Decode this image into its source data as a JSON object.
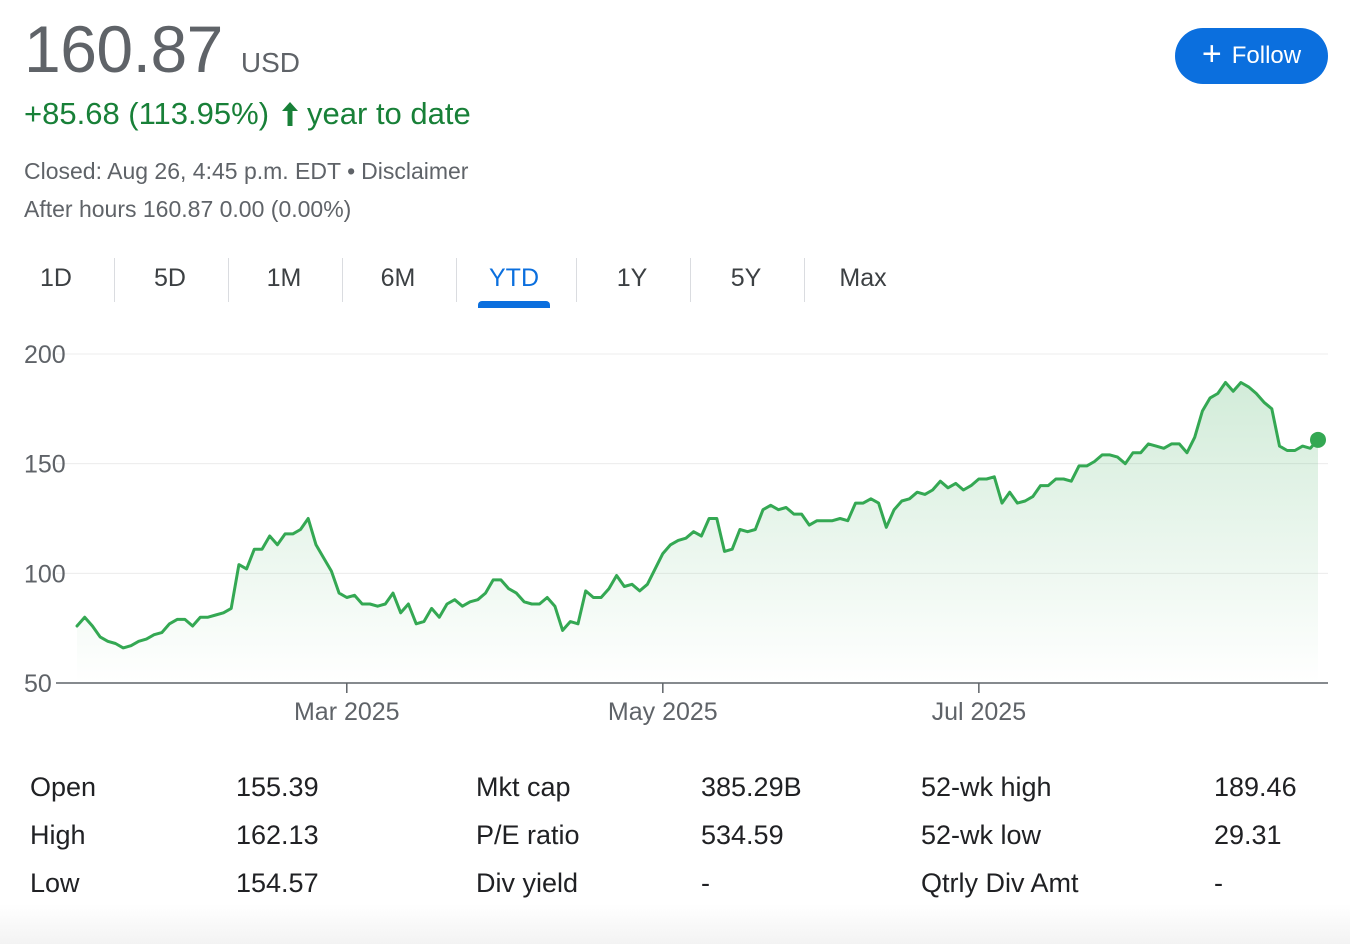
{
  "quote": {
    "price": "160.87",
    "currency": "USD",
    "change": "+85.68 (113.95%)",
    "change_period": "year to date",
    "closed": "Closed: Aug 26, 4:45 p.m. EDT",
    "separator": "•",
    "disclaimer": "Disclaimer",
    "after_hours": "After hours 160.87",
    "after_change": "0.00 (0.00%)",
    "up_color": "#188038"
  },
  "follow": {
    "label": "Follow",
    "icon": "plus-icon"
  },
  "tabs": [
    {
      "label": "1D",
      "active": false
    },
    {
      "label": "5D",
      "active": false
    },
    {
      "label": "1M",
      "active": false
    },
    {
      "label": "6M",
      "active": false
    },
    {
      "label": "YTD",
      "active": true
    },
    {
      "label": "1Y",
      "active": false
    },
    {
      "label": "5Y",
      "active": false
    },
    {
      "label": "Max",
      "active": false
    }
  ],
  "chart_data": {
    "type": "area",
    "ylim": [
      50,
      200
    ],
    "yticks": [
      "200",
      "150",
      "100",
      "50"
    ],
    "ytick_values": [
      200,
      150,
      100,
      50
    ],
    "xticks": [
      {
        "label": "Mar 2025",
        "index": 35
      },
      {
        "label": "May 2025",
        "index": 76
      },
      {
        "label": "Jul 2025",
        "index": 117
      }
    ],
    "grid": true,
    "line_color": "#34a853",
    "values": [
      76,
      80,
      76,
      71,
      69,
      68,
      66,
      67,
      69,
      70,
      72,
      73,
      77,
      79,
      79,
      76,
      80,
      80,
      81,
      82,
      84,
      104,
      102,
      111,
      111,
      117,
      113,
      118,
      118,
      120,
      125,
      113,
      107,
      101,
      91,
      89,
      90,
      86,
      86,
      85,
      86,
      91,
      82,
      86,
      77,
      78,
      84,
      80,
      86,
      88,
      85,
      87,
      88,
      91,
      97,
      97,
      93,
      91,
      87,
      86,
      86,
      89,
      85,
      74,
      78,
      77,
      92,
      89,
      89,
      93,
      99,
      94,
      95,
      92,
      95,
      102,
      109,
      113,
      115,
      116,
      119,
      117,
      125,
      125,
      110,
      111,
      120,
      119,
      120,
      129,
      131,
      129,
      130,
      127,
      127,
      122,
      124,
      124,
      124,
      125,
      124,
      132,
      132,
      134,
      132,
      121,
      129,
      133,
      134,
      137,
      136,
      138,
      142,
      139,
      141,
      138,
      140,
      143,
      143,
      144,
      132,
      137,
      132,
      133,
      135,
      140,
      140,
      143,
      143,
      142,
      149,
      149,
      151,
      154,
      154,
      153,
      150,
      155,
      155,
      159,
      158,
      157,
      159,
      159,
      155,
      162,
      174,
      180,
      182,
      187,
      183,
      187,
      185,
      182,
      178,
      175,
      158,
      156,
      156,
      158,
      157,
      160.87
    ],
    "last_value": 160.87
  },
  "stats": [
    [
      {
        "label": "Open",
        "value": "155.39"
      },
      {
        "label": "Mkt cap",
        "value": "385.29B"
      },
      {
        "label": "52-wk high",
        "value": "189.46"
      }
    ],
    [
      {
        "label": "High",
        "value": "162.13"
      },
      {
        "label": "P/E ratio",
        "value": "534.59"
      },
      {
        "label": "52-wk low",
        "value": "29.31"
      }
    ],
    [
      {
        "label": "Low",
        "value": "154.57"
      },
      {
        "label": "Div yield",
        "value": "-"
      },
      {
        "label": "Qtrly Div Amt",
        "value": "-"
      }
    ]
  ]
}
